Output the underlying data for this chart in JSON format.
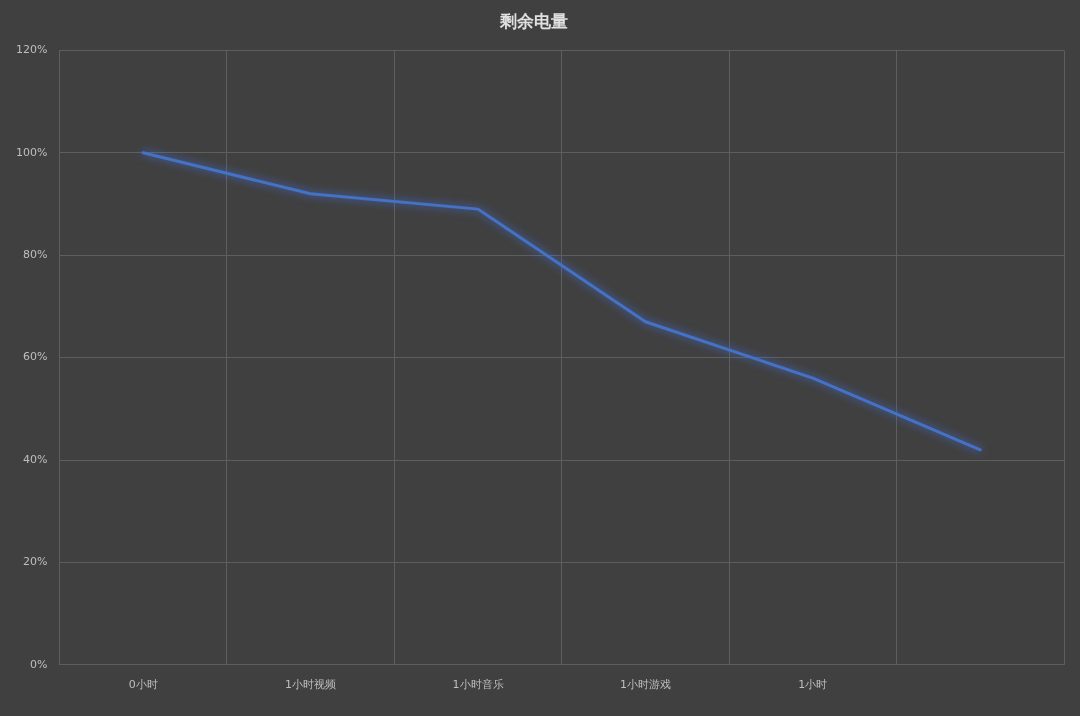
{
  "chart_data": {
    "type": "line",
    "title": "剩余电量",
    "categories": [
      "0小时",
      "1小时视频",
      "1小时音乐",
      "1小时游戏",
      "1小时",
      null
    ],
    "series": [
      {
        "color": "#4472c4",
        "values": [
          100,
          92,
          89,
          67,
          56,
          42
        ]
      }
    ],
    "ylim": [
      0,
      120
    ],
    "yticks": [
      {
        "value": 0,
        "label": "0%"
      },
      {
        "value": 20,
        "label": "20%"
      },
      {
        "value": 40,
        "label": "40%"
      },
      {
        "value": 60,
        "label": "60%"
      },
      {
        "value": 80,
        "label": "80%"
      },
      {
        "value": 100,
        "label": "100%"
      },
      {
        "value": 120,
        "label": "120%"
      }
    ],
    "grid": true,
    "legend": false,
    "marker": "none",
    "line_style": "solid"
  }
}
